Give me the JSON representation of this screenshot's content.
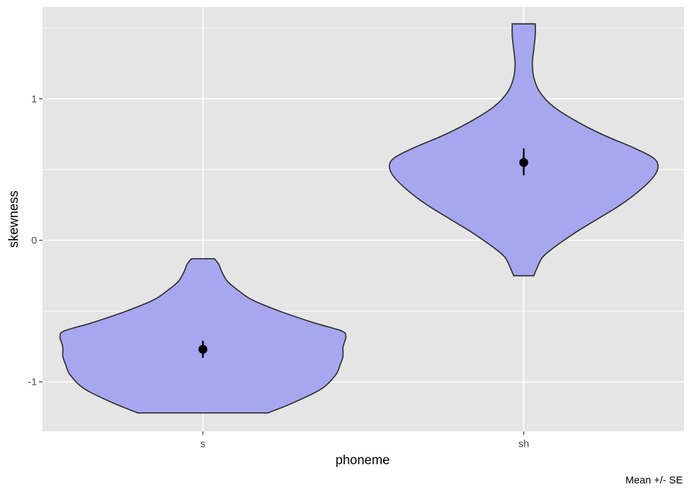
{
  "chart_data": {
    "type": "violin",
    "categories": [
      "s",
      "sh"
    ],
    "xlabel": "phoneme",
    "ylabel": "skewness",
    "ylim": [
      -1.35,
      1.65
    ],
    "y_ticks": [
      -1,
      0,
      1
    ],
    "y_tick_labels": [
      "-1",
      "0",
      "1"
    ],
    "y_minor_ticks": [
      -1.5,
      -0.5,
      0.5,
      1.5
    ],
    "caption": "Mean +/- SE",
    "grid": true,
    "colors": {
      "panel": "#e5e5e5",
      "grid": "#ffffff",
      "violin_fill": "#a3a3f0",
      "violin_outline": "#333333",
      "point": "#000000"
    },
    "series": [
      {
        "category": "s",
        "ymin": -1.22,
        "ymax": -0.13,
        "mean": -0.77,
        "se_low": -0.83,
        "se_high": -0.71,
        "profile": [
          [
            -1.22,
            0.45
          ],
          [
            -1.15,
            0.62
          ],
          [
            -1.05,
            0.82
          ],
          [
            -0.95,
            0.92
          ],
          [
            -0.88,
            0.95
          ],
          [
            -0.82,
            0.97
          ],
          [
            -0.76,
            0.97
          ],
          [
            -0.72,
            0.98
          ],
          [
            -0.68,
            0.99
          ],
          [
            -0.64,
            0.96
          ],
          [
            -0.58,
            0.76
          ],
          [
            -0.5,
            0.53
          ],
          [
            -0.42,
            0.34
          ],
          [
            -0.35,
            0.24
          ],
          [
            -0.29,
            0.17
          ],
          [
            -0.22,
            0.13
          ],
          [
            -0.17,
            0.11
          ],
          [
            -0.13,
            0.08
          ]
        ]
      },
      {
        "category": "sh",
        "ymin": -0.25,
        "ymax": 1.53,
        "mean": 0.55,
        "se_low": 0.46,
        "se_high": 0.65,
        "profile": [
          [
            -0.25,
            0.07
          ],
          [
            -0.2,
            0.09
          ],
          [
            -0.12,
            0.13
          ],
          [
            -0.05,
            0.21
          ],
          [
            0.05,
            0.35
          ],
          [
            0.15,
            0.51
          ],
          [
            0.25,
            0.67
          ],
          [
            0.35,
            0.8
          ],
          [
            0.45,
            0.9
          ],
          [
            0.52,
            0.93
          ],
          [
            0.58,
            0.9
          ],
          [
            0.65,
            0.77
          ],
          [
            0.75,
            0.54
          ],
          [
            0.85,
            0.35
          ],
          [
            0.95,
            0.2
          ],
          [
            1.05,
            0.11
          ],
          [
            1.15,
            0.07
          ],
          [
            1.25,
            0.06
          ],
          [
            1.35,
            0.07
          ],
          [
            1.45,
            0.08
          ],
          [
            1.53,
            0.08
          ]
        ]
      }
    ]
  }
}
